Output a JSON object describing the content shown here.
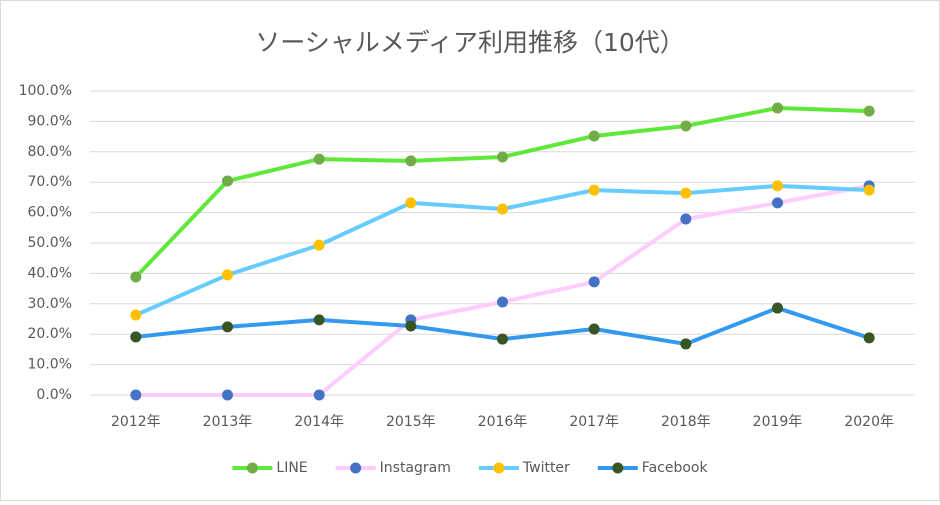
{
  "chart_data": {
    "type": "line",
    "title": "ソーシャルメディア利用推移（10代）",
    "categories": [
      "2012年",
      "2013年",
      "2014年",
      "2015年",
      "2016年",
      "2017年",
      "2018年",
      "2019年",
      "2020年"
    ],
    "series": [
      {
        "name": "LINE",
        "color": "#5fe83a",
        "marker_color": "#70ad47",
        "values": [
          38.8,
          70.4,
          77.6,
          77.0,
          78.3,
          85.2,
          88.5,
          94.4,
          93.4
        ]
      },
      {
        "name": "Instagram",
        "color": "#ffccff",
        "marker_color": "#4472c4",
        "values": [
          0,
          0,
          0,
          24.7,
          30.6,
          37.2,
          57.9,
          63.2,
          68.8
        ]
      },
      {
        "name": "Twitter",
        "color": "#66ccff",
        "marker_color": "#ffc000",
        "values": [
          26.3,
          39.5,
          49.3,
          63.2,
          61.2,
          67.4,
          66.4,
          68.8,
          67.4
        ]
      },
      {
        "name": "Facebook",
        "color": "#3399ee",
        "marker_color": "#375623",
        "values": [
          19.1,
          22.4,
          24.7,
          22.7,
          18.4,
          21.7,
          16.8,
          28.6,
          18.8
        ]
      }
    ],
    "ylim": [
      0,
      100
    ],
    "yticks": [
      {
        "value": 0,
        "label": "0.0%"
      },
      {
        "value": 10,
        "label": "10.0%"
      },
      {
        "value": 20,
        "label": "20.0%"
      },
      {
        "value": 30,
        "label": "30.0%"
      },
      {
        "value": 40,
        "label": "40.0%"
      },
      {
        "value": 50,
        "label": "50.0%"
      },
      {
        "value": 60,
        "label": "60.0%"
      },
      {
        "value": 70,
        "label": "70.0%"
      },
      {
        "value": 80,
        "label": "80.0%"
      },
      {
        "value": 90,
        "label": "90.0%"
      },
      {
        "value": 100,
        "label": "100.0%"
      }
    ],
    "grid": true,
    "legend": "bottom"
  }
}
